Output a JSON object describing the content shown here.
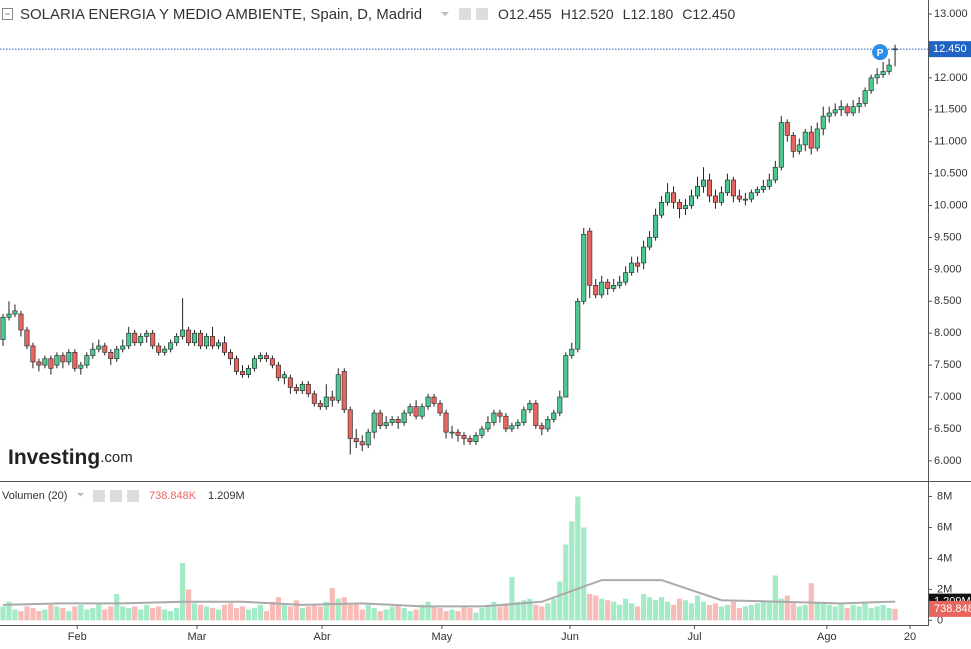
{
  "chart_data": {
    "type": "candlestick",
    "title": "SOLARIA ENERGIA Y MEDIO AMBIENTE, Spain, D, Madrid",
    "ohlc": [
      {
        "label": "O",
        "value": "12.455"
      },
      {
        "label": "H",
        "value": "12.520"
      },
      {
        "label": "L",
        "value": "12.180"
      },
      {
        "label": "C",
        "value": "12.450"
      }
    ],
    "last_price": {
      "value": 12.45,
      "label": "12.450"
    },
    "marker": "P",
    "logo": {
      "name": "Investing",
      "suffix": ".com"
    },
    "up_color": "#4cc790",
    "down_color": "#e8655f",
    "xlim": [
      -0.5,
      154.5
    ],
    "xticks": [
      {
        "value": 12.4,
        "label": "Feb"
      },
      {
        "value": 32.4,
        "label": "Mar"
      },
      {
        "value": 53.3,
        "label": "Abr"
      },
      {
        "value": 73.3,
        "label": "May"
      },
      {
        "value": 94.7,
        "label": "Jun"
      },
      {
        "value": 115.5,
        "label": "Jul"
      },
      {
        "value": 137.6,
        "label": "Ago"
      },
      {
        "value": 151.5,
        "label": "20"
      }
    ],
    "ylim": [
      5.7,
      13.22
    ],
    "yticks": [
      {
        "value": 6,
        "label": "6.000"
      },
      {
        "value": 6.5,
        "label": "6.500"
      },
      {
        "value": 7,
        "label": "7.000"
      },
      {
        "value": 7.5,
        "label": "7.500"
      },
      {
        "value": 8,
        "label": "8.000"
      },
      {
        "value": 8.5,
        "label": "8.500"
      },
      {
        "value": 9,
        "label": "9.000"
      },
      {
        "value": 9.5,
        "label": "9.500"
      },
      {
        "value": 10,
        "label": "10.000"
      },
      {
        "value": 10.5,
        "label": "10.500"
      },
      {
        "value": 11,
        "label": "11.000"
      },
      {
        "value": 11.5,
        "label": "11.500"
      },
      {
        "value": 12,
        "label": "12.000"
      },
      {
        "value": 12.5,
        "label": "12.500"
      },
      {
        "value": 13,
        "label": "13.000"
      }
    ],
    "open": [
      7.9,
      8.25,
      8.3,
      8.3,
      8.05,
      7.8,
      7.55,
      7.5,
      7.6,
      7.5,
      7.65,
      7.55,
      7.7,
      7.45,
      7.5,
      7.65,
      7.75,
      7.8,
      7.7,
      7.6,
      7.75,
      7.8,
      8.0,
      7.85,
      7.95,
      8.0,
      7.8,
      7.7,
      7.75,
      7.85,
      7.95,
      8.05,
      7.85,
      8.0,
      7.8,
      7.95,
      7.8,
      7.85,
      7.7,
      7.6,
      7.4,
      7.35,
      7.45,
      7.6,
      7.65,
      7.6,
      7.5,
      7.3,
      7.3,
      7.15,
      7.1,
      7.2,
      7.05,
      6.9,
      6.85,
      7.0,
      6.95,
      7.4,
      6.8,
      6.35,
      6.3,
      6.25,
      6.45,
      6.75,
      6.55,
      6.6,
      6.65,
      6.6,
      6.75,
      6.85,
      6.7,
      6.85,
      7.0,
      6.9,
      6.75,
      6.45,
      6.45,
      6.4,
      6.35,
      6.3,
      6.4,
      6.5,
      6.6,
      6.75,
      6.7,
      6.5,
      6.55,
      6.6,
      6.8,
      6.9,
      6.55,
      6.5,
      6.65,
      6.75,
      7.0,
      7.65,
      7.75,
      8.5,
      9.6,
      8.75,
      8.6,
      8.8,
      8.7,
      8.75,
      8.8,
      8.95,
      9.1,
      9.1,
      9.35,
      9.5,
      9.85,
      10.05,
      10.2,
      10.05,
      9.95,
      10.0,
      10.15,
      10.3,
      10.4,
      10.15,
      10.05,
      10.2,
      10.4,
      10.15,
      10.1,
      10.1,
      10.2,
      10.25,
      10.3,
      10.4,
      10.6,
      11.3,
      11.1,
      10.85,
      10.95,
      11.15,
      10.9,
      11.2,
      11.4,
      11.45,
      11.5,
      11.55,
      11.45,
      11.55,
      11.6,
      11.8,
      12.0,
      12.05,
      12.1,
      12.455
    ],
    "high": [
      8.3,
      8.5,
      8.45,
      8.35,
      8.1,
      7.85,
      7.6,
      7.65,
      7.65,
      7.7,
      7.7,
      7.75,
      7.75,
      7.55,
      7.7,
      7.85,
      7.9,
      7.85,
      7.75,
      7.8,
      7.9,
      8.1,
      8.05,
      8.0,
      8.05,
      8.05,
      7.85,
      7.8,
      7.9,
      8.0,
      8.55,
      8.1,
      8.05,
      8.05,
      8.0,
      8.1,
      7.9,
      7.95,
      7.75,
      7.65,
      7.5,
      7.5,
      7.65,
      7.7,
      7.7,
      7.65,
      7.55,
      7.4,
      7.35,
      7.2,
      7.25,
      7.25,
      7.1,
      6.95,
      7.2,
      7.1,
      7.45,
      7.45,
      6.85,
      6.5,
      6.4,
      6.5,
      6.8,
      6.8,
      6.7,
      6.7,
      6.7,
      6.8,
      6.9,
      6.95,
      6.9,
      7.05,
      7.05,
      6.95,
      6.8,
      6.55,
      6.5,
      6.45,
      6.4,
      6.45,
      6.55,
      6.7,
      6.8,
      6.8,
      6.75,
      6.6,
      6.65,
      6.85,
      6.95,
      6.95,
      6.6,
      6.7,
      6.8,
      7.1,
      7.7,
      7.85,
      8.55,
      9.65,
      9.65,
      8.85,
      8.9,
      8.85,
      8.85,
      8.9,
      9.05,
      9.2,
      9.2,
      9.45,
      9.6,
      9.95,
      10.15,
      10.35,
      10.3,
      10.1,
      10.1,
      10.25,
      10.45,
      10.6,
      10.5,
      10.25,
      10.3,
      10.5,
      10.45,
      10.25,
      10.2,
      10.25,
      10.3,
      10.4,
      10.5,
      10.7,
      11.4,
      11.35,
      11.15,
      11.05,
      11.2,
      11.25,
      11.3,
      11.55,
      11.55,
      11.6,
      11.65,
      11.6,
      11.65,
      11.7,
      11.85,
      12.05,
      12.15,
      12.25,
      12.3,
      12.52
    ],
    "low": [
      7.8,
      8.2,
      8.25,
      7.95,
      7.75,
      7.45,
      7.4,
      7.45,
      7.35,
      7.45,
      7.45,
      7.5,
      7.4,
      7.35,
      7.45,
      7.6,
      7.7,
      7.65,
      7.5,
      7.55,
      7.7,
      7.75,
      7.8,
      7.8,
      7.85,
      7.75,
      7.65,
      7.65,
      7.7,
      7.8,
      7.9,
      7.8,
      7.8,
      7.75,
      7.75,
      7.75,
      7.75,
      7.65,
      7.5,
      7.35,
      7.3,
      7.3,
      7.4,
      7.55,
      7.55,
      7.45,
      7.25,
      7.2,
      7.05,
      7.05,
      7.05,
      7.0,
      6.85,
      6.8,
      6.8,
      6.85,
      6.9,
      6.75,
      6.1,
      6.2,
      6.15,
      6.2,
      6.35,
      6.5,
      6.5,
      6.55,
      6.5,
      6.55,
      6.7,
      6.65,
      6.65,
      6.8,
      6.85,
      6.7,
      6.35,
      6.35,
      6.3,
      6.25,
      6.25,
      6.25,
      6.35,
      6.45,
      6.55,
      6.6,
      6.45,
      6.45,
      6.5,
      6.55,
      6.75,
      6.5,
      6.4,
      6.45,
      6.6,
      6.7,
      7.0,
      7.6,
      7.7,
      8.45,
      8.55,
      8.55,
      8.55,
      8.6,
      8.65,
      8.7,
      8.75,
      8.9,
      8.95,
      9.0,
      9.3,
      9.45,
      9.8,
      10.0,
      9.95,
      9.8,
      9.85,
      9.95,
      10.1,
      10.2,
      10.05,
      9.95,
      10.0,
      10.15,
      10.05,
      10.05,
      10.0,
      10.05,
      10.15,
      10.2,
      10.25,
      10.35,
      10.55,
      11.0,
      10.75,
      10.8,
      10.85,
      10.8,
      10.85,
      11.1,
      11.3,
      11.4,
      11.4,
      11.4,
      11.4,
      11.45,
      11.55,
      11.75,
      11.9,
      12.0,
      12.05,
      12.18
    ],
    "close": [
      8.25,
      8.3,
      8.35,
      8.05,
      7.8,
      7.55,
      7.5,
      7.6,
      7.45,
      7.65,
      7.55,
      7.7,
      7.45,
      7.5,
      7.65,
      7.75,
      7.8,
      7.7,
      7.6,
      7.75,
      7.8,
      8.0,
      7.85,
      7.95,
      8.0,
      7.8,
      7.7,
      7.75,
      7.85,
      7.95,
      8.05,
      7.85,
      8.0,
      7.8,
      7.95,
      7.8,
      7.85,
      7.7,
      7.6,
      7.4,
      7.35,
      7.45,
      7.6,
      7.65,
      7.6,
      7.5,
      7.3,
      7.35,
      7.15,
      7.1,
      7.2,
      7.05,
      6.9,
      6.85,
      7.0,
      6.95,
      7.35,
      6.8,
      6.35,
      6.3,
      6.25,
      6.45,
      6.75,
      6.55,
      6.6,
      6.65,
      6.6,
      6.75,
      6.85,
      6.7,
      6.85,
      7.0,
      6.9,
      6.75,
      6.45,
      6.45,
      6.4,
      6.35,
      6.3,
      6.4,
      6.5,
      6.6,
      6.75,
      6.7,
      6.5,
      6.55,
      6.6,
      6.8,
      6.9,
      6.55,
      6.5,
      6.65,
      6.75,
      7.0,
      7.65,
      7.75,
      8.5,
      9.55,
      8.75,
      8.6,
      8.8,
      8.7,
      8.75,
      8.8,
      8.95,
      9.1,
      9.05,
      9.35,
      9.5,
      9.85,
      10.05,
      10.2,
      10.05,
      9.95,
      10.0,
      10.15,
      10.3,
      10.4,
      10.15,
      10.05,
      10.2,
      10.4,
      10.15,
      10.1,
      10.1,
      10.2,
      10.25,
      10.3,
      10.4,
      10.6,
      11.3,
      11.1,
      10.85,
      10.95,
      11.15,
      10.9,
      11.2,
      11.4,
      11.45,
      11.5,
      11.55,
      11.45,
      11.55,
      11.6,
      11.8,
      12.0,
      12.05,
      12.1,
      12.2,
      12.45
    ],
    "volume": {
      "name": "Volumen (20)",
      "readouts": [
        "738.848K",
        "1.209M"
      ],
      "up_color": "#a3ebc7",
      "down_color": "#f8bcb8",
      "ma_color": "#aaaaaa",
      "ylim": [
        -0.3,
        9.0
      ],
      "yticks": [
        {
          "value": 0,
          "label": "0"
        },
        {
          "value": 2,
          "label": "2M"
        },
        {
          "value": 4,
          "label": "4M"
        },
        {
          "value": 6,
          "label": "6M"
        },
        {
          "value": 8,
          "label": "8M"
        }
      ],
      "values": [
        0.9,
        1.2,
        0.7,
        0.6,
        0.9,
        0.8,
        0.6,
        0.7,
        1.0,
        0.9,
        0.8,
        0.6,
        0.9,
        1.0,
        0.7,
        0.8,
        1.1,
        0.7,
        0.9,
        1.7,
        0.9,
        0.8,
        0.9,
        0.7,
        1.0,
        0.8,
        0.9,
        0.7,
        0.6,
        0.8,
        3.7,
        2.0,
        1.1,
        1.0,
        0.9,
        0.8,
        0.7,
        1.0,
        1.1,
        0.8,
        0.9,
        0.7,
        0.8,
        1.0,
        0.6,
        1.2,
        1.5,
        1.1,
        0.9,
        1.3,
        0.8,
        0.9,
        1.0,
        0.9,
        1.2,
        2.1,
        1.4,
        1.5,
        1.0,
        1.1,
        0.7,
        1.0,
        0.8,
        0.6,
        0.7,
        0.9,
        1.0,
        0.8,
        0.6,
        0.7,
        1.0,
        1.2,
        0.9,
        0.8,
        0.6,
        0.7,
        0.6,
        0.9,
        0.8,
        0.5,
        0.8,
        1.0,
        1.2,
        0.9,
        1.1,
        2.8,
        1.2,
        1.3,
        1.4,
        1.0,
        0.9,
        1.1,
        1.4,
        2.5,
        4.9,
        6.4,
        8.0,
        6.0,
        1.7,
        1.6,
        1.4,
        1.3,
        1.2,
        1.0,
        1.4,
        1.1,
        0.9,
        1.7,
        1.5,
        1.3,
        1.5,
        1.2,
        1.0,
        1.4,
        1.3,
        1.1,
        1.6,
        1.2,
        1.0,
        1.1,
        0.9,
        1.0,
        1.2,
        0.8,
        0.9,
        1.0,
        1.1,
        1.3,
        1.2,
        2.9,
        1.4,
        1.6,
        1.1,
        0.9,
        1.0,
        2.4,
        1.2,
        1.1,
        1.0,
        0.9,
        1.1,
        0.8,
        1.0,
        0.9,
        1.1,
        0.8,
        0.9,
        1.0,
        0.8,
        0.738848
      ],
      "ma": {
        "x": [
          0,
          10,
          20,
          30,
          40,
          50,
          60,
          70,
          80,
          90,
          100,
          110,
          120,
          130,
          140,
          149
        ],
        "values": [
          1.0,
          1.1,
          1.1,
          1.2,
          1.2,
          1.0,
          1.1,
          0.9,
          0.9,
          1.2,
          2.6,
          2.6,
          1.3,
          1.2,
          1.1,
          1.209
        ]
      }
    }
  }
}
